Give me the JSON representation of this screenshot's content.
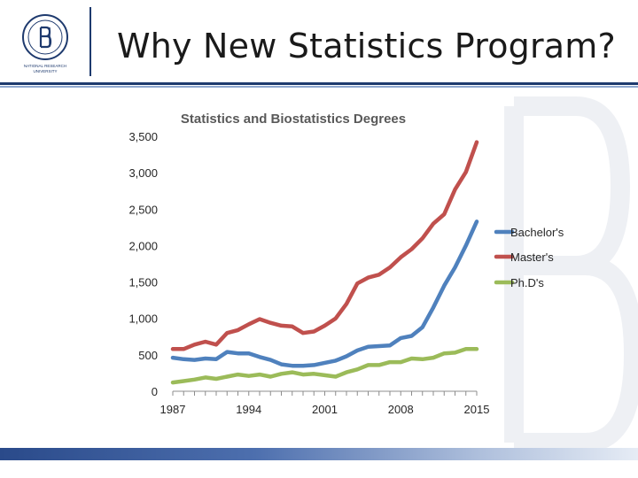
{
  "slide": {
    "title": "Why New Statistics Program?",
    "logo_text_line1": "NATIONAL RESEARCH",
    "logo_text_line2": "UNIVERSITY"
  },
  "chart_data": {
    "type": "line",
    "title": "Statistics and Biostatistics Degrees",
    "xlabel": "",
    "ylabel": "",
    "x": [
      1987,
      1988,
      1989,
      1990,
      1991,
      1992,
      1993,
      1994,
      1995,
      1996,
      1997,
      1998,
      1999,
      2000,
      2001,
      2002,
      2003,
      2004,
      2005,
      2006,
      2007,
      2008,
      2009,
      2010,
      2011,
      2012,
      2013,
      2014,
      2015
    ],
    "xticks": [
      1987,
      1994,
      2001,
      2008,
      2015
    ],
    "ylim": [
      0,
      3500
    ],
    "yticks": [
      0,
      500,
      1000,
      1500,
      2000,
      2500,
      3000,
      3500
    ],
    "ytick_labels": [
      "0",
      "500",
      "1,000",
      "1,500",
      "2,000",
      "2,500",
      "3,000",
      "3,500"
    ],
    "legend_position": "right",
    "series": [
      {
        "name": "Bachelor's",
        "color": "#4f81bd",
        "values": [
          460,
          440,
          430,
          450,
          440,
          540,
          520,
          520,
          470,
          430,
          370,
          350,
          350,
          360,
          390,
          420,
          480,
          560,
          610,
          620,
          630,
          730,
          760,
          880,
          1150,
          1450,
          1700,
          2000,
          2330
        ]
      },
      {
        "name": "Master's",
        "color": "#c0504d",
        "values": [
          580,
          580,
          640,
          680,
          640,
          800,
          840,
          920,
          990,
          940,
          900,
          890,
          800,
          820,
          900,
          1000,
          1200,
          1480,
          1560,
          1600,
          1700,
          1840,
          1950,
          2100,
          2300,
          2430,
          2770,
          3010,
          3420
        ]
      },
      {
        "name": "Ph.D's",
        "color": "#9bbb59",
        "values": [
          120,
          140,
          160,
          190,
          170,
          200,
          230,
          210,
          230,
          200,
          240,
          260,
          230,
          240,
          220,
          200,
          260,
          300,
          360,
          360,
          400,
          400,
          450,
          440,
          460,
          520,
          530,
          580,
          580
        ]
      }
    ]
  }
}
